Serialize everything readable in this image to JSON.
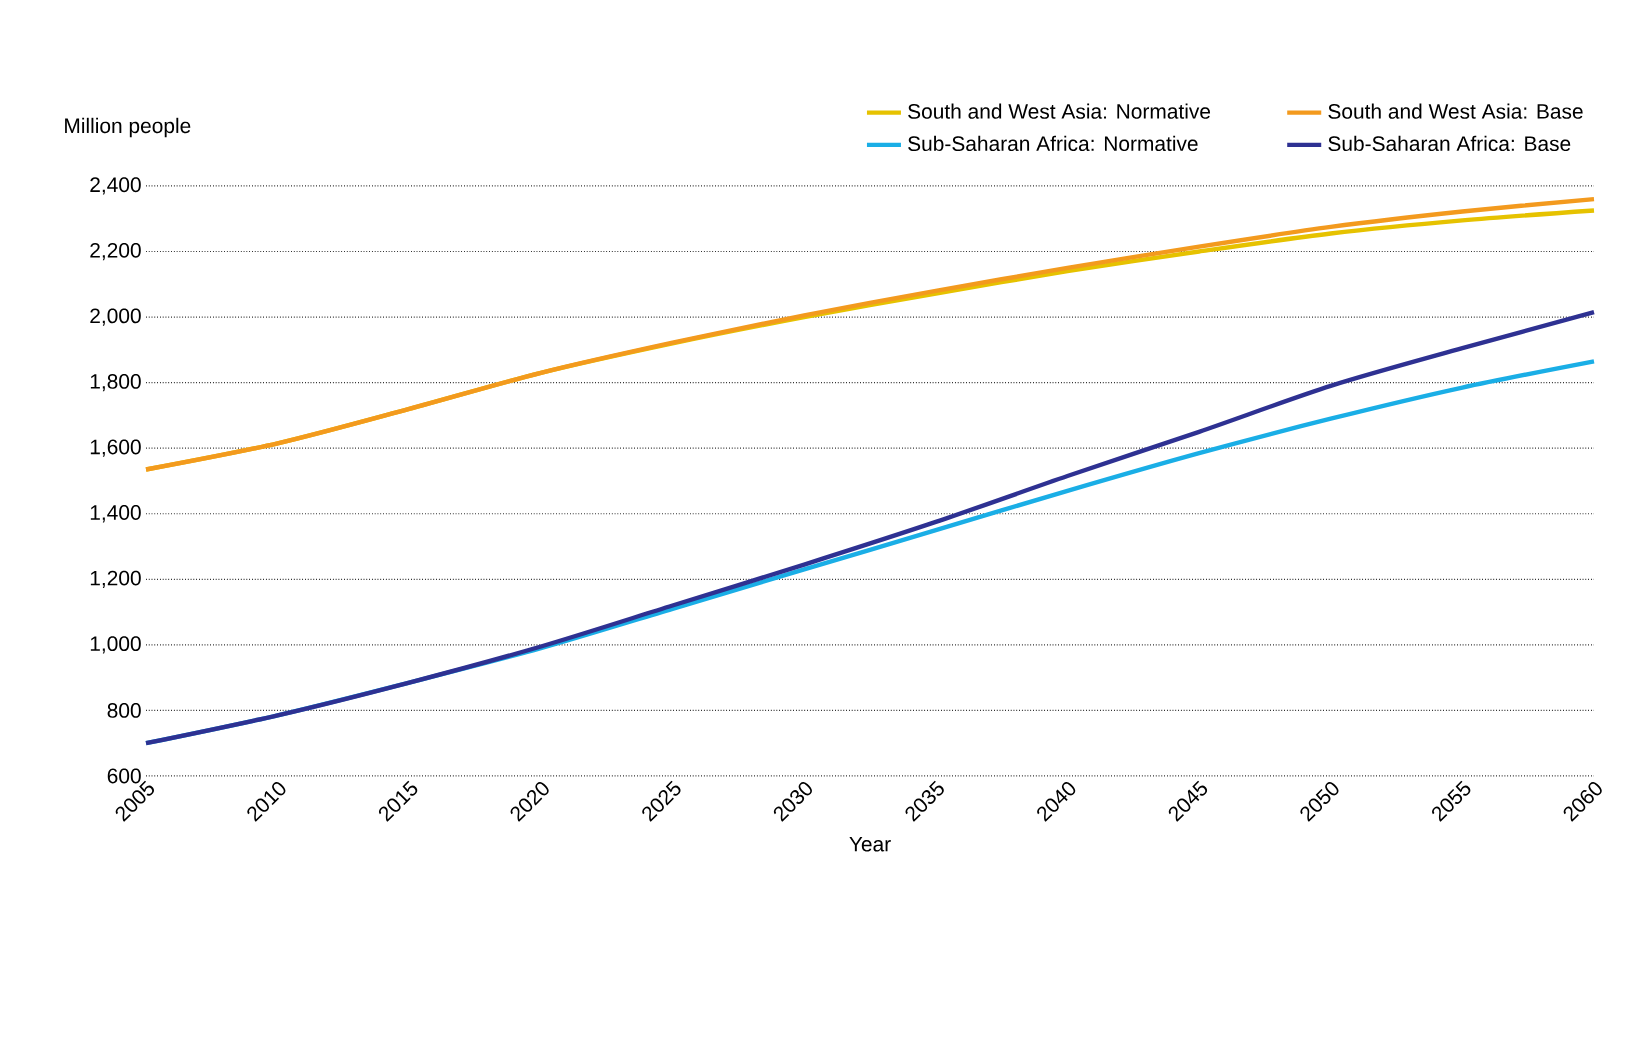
{
  "chart_data": {
    "type": "line",
    "xlabel": "Year",
    "ylabel": "Million people",
    "x": [
      2005,
      2010,
      2015,
      2020,
      2025,
      2030,
      2035,
      2040,
      2045,
      2050,
      2055,
      2060
    ],
    "series": [
      {
        "name": "South and West Asia: Normative",
        "color": "#e6c200",
        "values": [
          1535,
          1615,
          1720,
          1830,
          1920,
          2000,
          2072,
          2140,
          2200,
          2255,
          2295,
          2325
        ]
      },
      {
        "name": "South and West Asia: Base",
        "color": "#f39a1e",
        "values": [
          1535,
          1615,
          1720,
          1830,
          1922,
          2005,
          2080,
          2150,
          2215,
          2275,
          2322,
          2360
        ]
      },
      {
        "name": "Sub-Saharan Africa: Normative",
        "color": "#1aaee6",
        "values": [
          700,
          785,
          885,
          990,
          1110,
          1230,
          1350,
          1470,
          1585,
          1690,
          1785,
          1865
        ]
      },
      {
        "name": "Sub-Saharan Africa: Base",
        "color": "#2e3192",
        "values": [
          700,
          785,
          885,
          995,
          1120,
          1245,
          1375,
          1515,
          1650,
          1790,
          1905,
          2015
        ]
      }
    ],
    "xlim": [
      2005,
      2060
    ],
    "xticks": [
      2005,
      2010,
      2015,
      2020,
      2025,
      2030,
      2035,
      2040,
      2045,
      2050,
      2055,
      2060
    ],
    "ylim": [
      600,
      2400
    ],
    "yticks": [
      {
        "value": 600,
        "label": "600"
      },
      {
        "value": 800,
        "label": "800"
      },
      {
        "value": 1000,
        "label": "1,000"
      },
      {
        "value": 1200,
        "label": "1,200"
      },
      {
        "value": 1400,
        "label": "1,400"
      },
      {
        "value": 1600,
        "label": "1,600"
      },
      {
        "value": 1800,
        "label": "1,800"
      },
      {
        "value": 2000,
        "label": "2,000"
      },
      {
        "value": 2200,
        "label": "2,200"
      },
      {
        "value": 2400,
        "label": "2,400"
      }
    ],
    "grid": "y",
    "legend": "top right",
    "marker": "none",
    "line_style": "solid"
  }
}
